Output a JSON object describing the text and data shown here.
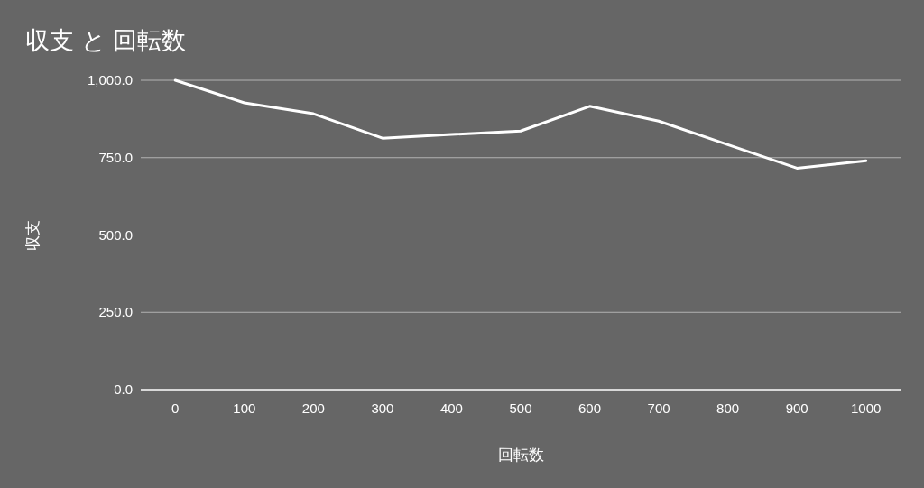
{
  "chart_data": {
    "type": "line",
    "title": "収支 と 回転数",
    "xlabel": "回転数",
    "ylabel": "収支",
    "categories": [
      "0",
      "100",
      "200",
      "300",
      "400",
      "500",
      "600",
      "700",
      "800",
      "900",
      "1000"
    ],
    "series": [
      {
        "color": "#ffffff",
        "values": [
          1000,
          927,
          892,
          813,
          825,
          836,
          916,
          868,
          792,
          716,
          740
        ]
      }
    ],
    "ylim": [
      0,
      1000
    ],
    "yticks": [
      {
        "value": 0,
        "label": "0.0"
      },
      {
        "value": 250,
        "label": "250.0"
      },
      {
        "value": 500,
        "label": "500.0"
      },
      {
        "value": 750,
        "label": "750.0"
      },
      {
        "value": 1000,
        "label": "1,000.0"
      }
    ],
    "grid": "y",
    "marker": "none",
    "line_style": "solid"
  }
}
